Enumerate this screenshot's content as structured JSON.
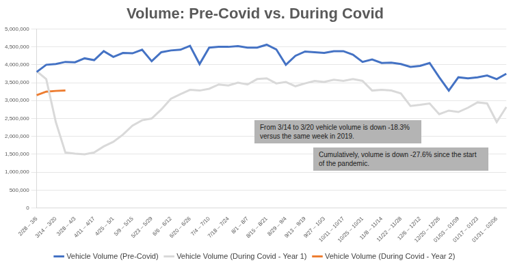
{
  "chart_data": {
    "type": "line",
    "title": "Volume: Pre-Covid vs. During Covid",
    "categories": [
      "2/28 – 3/6",
      null,
      "3/14 – 3/20",
      null,
      "3/28 – 4/3",
      null,
      "4/11 – 4/17",
      null,
      "4/25 – 5/1",
      null,
      "5/9 – 5/15",
      null,
      "5/23 – 5/29",
      null,
      "6/6 – 6/12",
      null,
      "6/20 – 6/26",
      null,
      "7/4 – 7/10",
      null,
      "7/18 – 7/24",
      null,
      "8/1 – 8/7",
      null,
      "8/15 – 8/21",
      null,
      "8/29 – 9/4",
      null,
      "9/13 – 9/19",
      null,
      "9/27 – 10/3",
      null,
      "10/11 – 10/17",
      null,
      "10/25 – 10/31",
      null,
      "11/8 – 11/14",
      null,
      "11/22 – 11/28",
      null,
      "12/6 – 12/12",
      null,
      "12/20 – 12/26",
      null,
      "01/03 – 01/09",
      null,
      "01/17 – 01/23",
      null,
      "01/31 – 02/06",
      null
    ],
    "series": [
      {
        "name": "Vehicle Volume (Pre-Covid)",
        "color": "#4472c4",
        "values": [
          3800000,
          4000000,
          4020000,
          4080000,
          4070000,
          4180000,
          4130000,
          4380000,
          4220000,
          4330000,
          4320000,
          4420000,
          4100000,
          4350000,
          4400000,
          4420000,
          4530000,
          4020000,
          4480000,
          4500000,
          4500000,
          4520000,
          4480000,
          4480000,
          4560000,
          4430000,
          4000000,
          4250000,
          4370000,
          4350000,
          4330000,
          4380000,
          4380000,
          4280000,
          4080000,
          4150000,
          4050000,
          4060000,
          4020000,
          3940000,
          3970000,
          4050000,
          3650000,
          3280000,
          3650000,
          3620000,
          3650000,
          3700000,
          3600000,
          3750000
        ]
      },
      {
        "name": "Vehicle Volume (During Covid - Year 1)",
        "color": "#d9d9d9",
        "values": [
          3820000,
          3600000,
          2400000,
          1550000,
          1520000,
          1500000,
          1550000,
          1720000,
          1850000,
          2050000,
          2300000,
          2450000,
          2500000,
          2750000,
          3050000,
          3180000,
          3300000,
          3280000,
          3330000,
          3450000,
          3420000,
          3500000,
          3450000,
          3600000,
          3620000,
          3480000,
          3520000,
          3400000,
          3480000,
          3550000,
          3520000,
          3580000,
          3550000,
          3600000,
          3550000,
          3280000,
          3300000,
          3280000,
          3200000,
          2850000,
          2880000,
          2920000,
          2620000,
          2720000,
          2680000,
          2800000,
          2950000,
          2920000,
          2400000,
          2820000
        ]
      },
      {
        "name": "Vehicle Volume (During Covid - Year 2)",
        "color": "#ed7d31",
        "values": [
          3150000,
          3250000,
          3270000,
          3280000,
          null,
          null,
          null,
          null,
          null,
          null,
          null,
          null,
          null,
          null,
          null,
          null,
          null,
          null,
          null,
          null,
          null,
          null,
          null,
          null,
          null,
          null,
          null,
          null,
          null,
          null,
          null,
          null,
          null,
          null,
          null,
          null,
          null,
          null,
          null,
          null,
          null,
          null,
          null,
          null,
          null,
          null,
          null,
          null,
          null,
          null
        ]
      }
    ],
    "ylim": [
      0,
      5000000
    ],
    "yticks": [
      0,
      {
        "value": 500000,
        "label": "500,000"
      },
      {
        "value": 1000000,
        "label": "1,000,000"
      },
      {
        "value": 1500000,
        "label": "1,500,000"
      },
      {
        "value": 2000000,
        "label": "2,000,000"
      },
      {
        "value": 2500000,
        "label": "2,500,000"
      },
      {
        "value": 3000000,
        "label": "3,000,000"
      },
      {
        "value": 3500000,
        "label": "3,500,000"
      },
      {
        "value": 4000000,
        "label": "4,000,000"
      },
      {
        "value": 4500000,
        "label": "4,500,000"
      },
      {
        "value": 5000000,
        "label": "5,000,000"
      }
    ],
    "grid": true,
    "legend": "bottom",
    "annotations": [
      "From 3/14 to 3/20 vehicle volume is down -18.3% versus the same week in 2019.",
      "Cumulatively, volume is down -27.6% since the start of the pandemic."
    ]
  }
}
